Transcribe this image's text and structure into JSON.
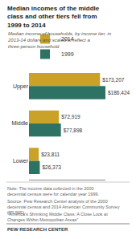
{
  "chart_data": {
    "type": "bar",
    "orientation": "horizontal",
    "title": "Median incomes of the middle class and\nother tiers fell from 1999 to 2014",
    "subtitle": "Median income of households, by income tier, in 2013-14\ndollars and scaled to reflect a three-person household",
    "categories": [
      "Upper",
      "Middle",
      "Lower"
    ],
    "series": [
      {
        "name": "2014",
        "color": "#c9a227",
        "values": [
          173207,
          72919,
          23811
        ],
        "value_labels": [
          "$173,207",
          "$72,919",
          "$23,811"
        ]
      },
      {
        "name": "1999",
        "color": "#2e7263",
        "values": [
          186424,
          77898,
          26373
        ],
        "value_labels": [
          "$186,424",
          "$77,898",
          "$26,373"
        ]
      }
    ],
    "xlim": [
      0,
      186424
    ],
    "grid": false,
    "data_labels": true,
    "tick_labels": "y",
    "legend": "top left",
    "annotations": [
      "Note: The income data collected in the 2000 decennial census were\nfor calendar year 1999.",
      "Source: Pew Research Center analysis of the 2000 decennial\ncensus and 2014 American Community Survey (IPUMS)",
      "\"America's Shrinking Middle Class: A Close Look at Changes Within\nMetropolitan Areas\"",
      "PEW RESEARCH CENTER"
    ]
  }
}
